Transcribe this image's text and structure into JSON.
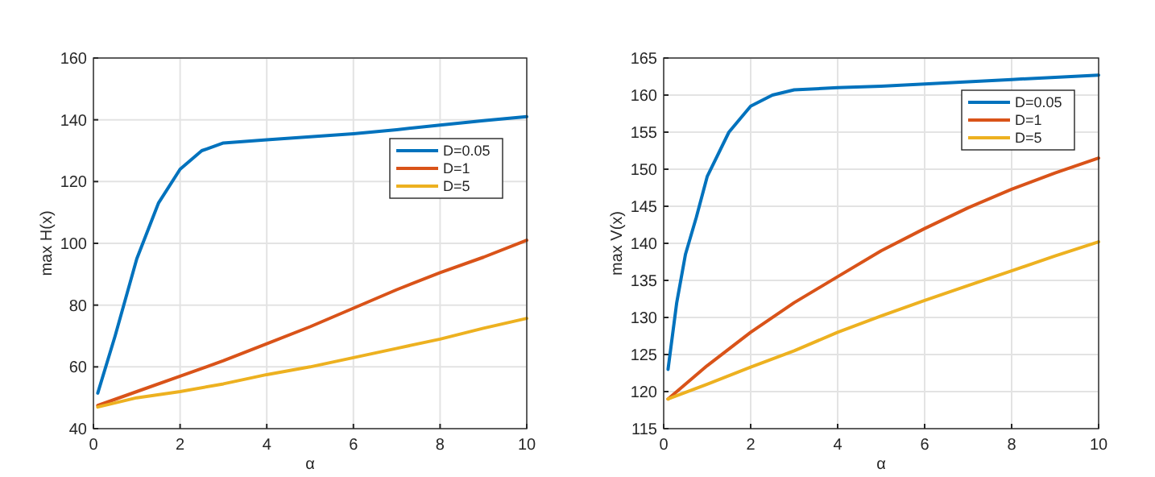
{
  "chart_data": [
    {
      "type": "line",
      "xlabel": "α",
      "ylabel": "max H(x)",
      "xlim": [
        0,
        10
      ],
      "xticks": [
        0,
        2,
        4,
        6,
        8,
        10
      ],
      "ylim": [
        40,
        160
      ],
      "yticks": [
        40,
        60,
        80,
        100,
        120,
        140,
        160
      ],
      "grid": true,
      "legend": "top right",
      "line_style": "solid",
      "marker": "none",
      "series": [
        {
          "name": "D=0.05",
          "color": "#0072bd",
          "x": [
            0.1,
            0.5,
            1,
            1.5,
            2,
            2.5,
            3,
            4,
            5,
            6,
            7,
            8,
            9,
            10
          ],
          "values": [
            51.5,
            70,
            95,
            113,
            124,
            130,
            132.5,
            133.5,
            134.5,
            135.5,
            136.8,
            138.3,
            139.7,
            141
          ]
        },
        {
          "name": "D=1",
          "color": "#d95319",
          "x": [
            0.1,
            1,
            2,
            3,
            4,
            5,
            6,
            7,
            8,
            9,
            10
          ],
          "values": [
            47.5,
            52,
            57,
            62,
            67.5,
            73,
            79,
            85,
            90.5,
            95.5,
            101
          ]
        },
        {
          "name": "D=5",
          "color": "#edb120",
          "x": [
            0.1,
            1,
            2,
            3,
            4,
            5,
            6,
            7,
            8,
            9,
            10
          ],
          "values": [
            47,
            50,
            52,
            54.5,
            57.5,
            60,
            63,
            66,
            69,
            72.5,
            75.7
          ]
        }
      ]
    },
    {
      "type": "line",
      "xlabel": "α",
      "ylabel": "max V(x)",
      "xlim": [
        0,
        10
      ],
      "xticks": [
        0,
        2,
        4,
        6,
        8,
        10
      ],
      "ylim": [
        115,
        165
      ],
      "yticks": [
        115,
        120,
        125,
        130,
        135,
        140,
        145,
        150,
        155,
        160,
        165
      ],
      "grid": true,
      "legend": "top right",
      "line_style": "solid",
      "marker": "none",
      "series": [
        {
          "name": "D=0.05",
          "color": "#0072bd",
          "x": [
            0.1,
            0.3,
            0.5,
            0.75,
            1,
            1.5,
            2,
            2.5,
            3,
            4,
            5,
            6,
            7,
            8,
            9,
            10
          ],
          "values": [
            123,
            132,
            138.5,
            143.5,
            149,
            155,
            158.5,
            160,
            160.7,
            161,
            161.2,
            161.5,
            161.8,
            162.1,
            162.4,
            162.7
          ]
        },
        {
          "name": "D=1",
          "color": "#d95319",
          "x": [
            0.1,
            1,
            2,
            3,
            4,
            5,
            6,
            7,
            8,
            9,
            10
          ],
          "values": [
            119,
            123.5,
            128,
            132,
            135.5,
            139,
            142,
            144.8,
            147.3,
            149.5,
            151.5
          ]
        },
        {
          "name": "D=5",
          "color": "#edb120",
          "x": [
            0.1,
            1,
            2,
            3,
            4,
            5,
            6,
            7,
            8,
            9,
            10
          ],
          "values": [
            119,
            121,
            123.3,
            125.5,
            128,
            130.2,
            132.3,
            134.3,
            136.3,
            138.3,
            140.2
          ]
        }
      ]
    }
  ]
}
